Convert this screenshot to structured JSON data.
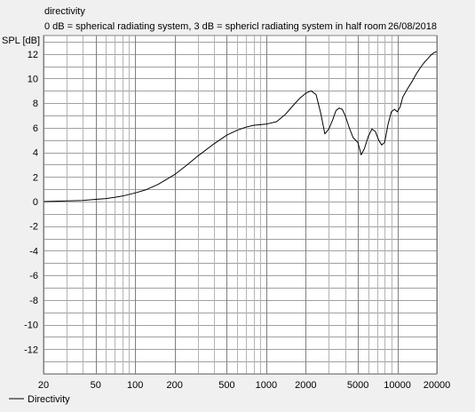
{
  "chart_data": {
    "type": "line",
    "title": "directivity",
    "subtitle": "0 dB = spherical radiating system, 3 dB = sphericl radiating system in half room",
    "date": "26/08/2018",
    "ylabel": "SPL [dB]",
    "xlabel": "",
    "x_scale": "log",
    "xlim": [
      20,
      20000
    ],
    "ylim": [
      -14,
      13.5
    ],
    "x_ticks": [
      20,
      50,
      100,
      200,
      500,
      1000,
      2000,
      5000,
      10000,
      20000
    ],
    "x_tick_labels": [
      "20",
      "50",
      "100",
      "200",
      "500",
      "1000",
      "2000",
      "5000",
      "10000",
      "20000"
    ],
    "y_ticks": [
      12,
      10,
      8,
      6,
      4,
      2,
      0,
      -2,
      -4,
      -6,
      -8,
      -10,
      -12
    ],
    "y_tick_labels": [
      "12",
      "10",
      "8",
      "6",
      "4",
      "2",
      "0",
      "-2",
      "-4",
      "-6",
      "-8",
      "-10",
      "-12"
    ],
    "grid": true,
    "legend_position": "bottom-left",
    "series": [
      {
        "name": "Directivity",
        "color": "#000000",
        "x": [
          20,
          30,
          40,
          50,
          60,
          70,
          80,
          100,
          120,
          150,
          200,
          250,
          300,
          400,
          500,
          600,
          700,
          800,
          1000,
          1200,
          1400,
          1600,
          1800,
          2000,
          2200,
          2400,
          2600,
          2800,
          3000,
          3200,
          3400,
          3600,
          3800,
          4000,
          4300,
          4600,
          5000,
          5300,
          5600,
          6000,
          6400,
          6800,
          7200,
          7600,
          8000,
          8500,
          9000,
          9500,
          10000,
          10500,
          11000,
          12000,
          13000,
          14000,
          15000,
          16000,
          17000,
          18000,
          19000,
          20000
        ],
        "y": [
          0.0,
          0.05,
          0.1,
          0.18,
          0.25,
          0.35,
          0.45,
          0.7,
          0.95,
          1.4,
          2.2,
          3.0,
          3.7,
          4.7,
          5.4,
          5.8,
          6.05,
          6.2,
          6.3,
          6.5,
          7.1,
          7.8,
          8.4,
          8.8,
          9.0,
          8.7,
          7.2,
          5.5,
          5.9,
          6.6,
          7.4,
          7.6,
          7.5,
          7.0,
          6.0,
          5.2,
          4.8,
          3.8,
          4.3,
          5.3,
          5.9,
          5.7,
          5.0,
          4.6,
          4.8,
          6.3,
          7.3,
          7.5,
          7.3,
          7.7,
          8.5,
          9.2,
          9.8,
          10.4,
          10.9,
          11.3,
          11.6,
          11.9,
          12.1,
          12.2
        ]
      }
    ]
  }
}
